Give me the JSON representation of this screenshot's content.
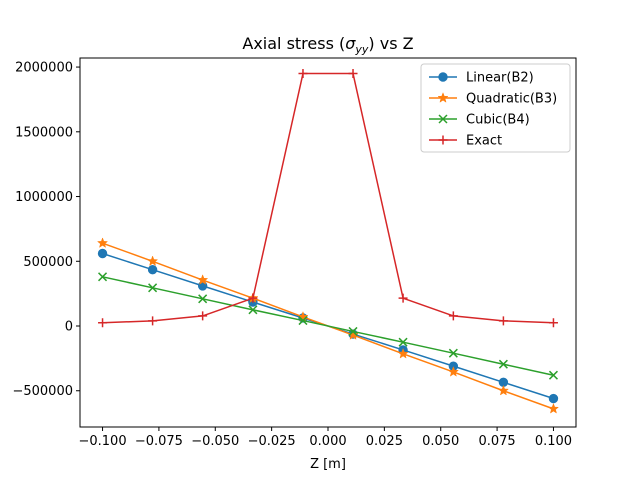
{
  "chart_data": {
    "type": "line",
    "title": {
      "prefix": "Axial stress (",
      "symbol": "σ",
      "subscript": "yy",
      "suffix": ") vs Z"
    },
    "xlabel": "Z [m]",
    "ylabel": "",
    "xlim": [
      -0.11,
      0.11
    ],
    "ylim": [
      -780000,
      2070000
    ],
    "x_ticks": [
      -0.1,
      -0.075,
      -0.05,
      -0.025,
      0.0,
      0.025,
      0.05,
      0.075,
      0.1
    ],
    "x_tick_labels": [
      "−0.100",
      "−0.075",
      "−0.050",
      "−0.025",
      "0.000",
      "0.025",
      "0.050",
      "0.075",
      "0.100"
    ],
    "y_ticks": [
      -500000,
      0,
      500000,
      1000000,
      1500000,
      2000000
    ],
    "y_tick_labels": [
      "−500000",
      "0",
      "500000",
      "1000000",
      "1500000",
      "2000000"
    ],
    "grid": false,
    "legend_position": "top-right",
    "series": [
      {
        "name": "Linear(B2)",
        "color": "#1f77b4",
        "marker": "circle",
        "x": [
          -0.1,
          -0.0778,
          -0.0556,
          -0.0333,
          -0.0111,
          0.0111,
          0.0333,
          0.0556,
          0.0778,
          0.1
        ],
        "y": [
          560000,
          435000,
          310000,
          185000,
          62000,
          -62000,
          -185000,
          -310000,
          -435000,
          -560000
        ]
      },
      {
        "name": "Quadratic(B3)",
        "color": "#ff7f0e",
        "marker": "star",
        "x": [
          -0.1,
          -0.0778,
          -0.0556,
          -0.0333,
          -0.0111,
          0.0111,
          0.0333,
          0.0556,
          0.0778,
          0.1
        ],
        "y": [
          640000,
          500000,
          355000,
          215000,
          70000,
          -70000,
          -215000,
          -355000,
          -500000,
          -640000
        ]
      },
      {
        "name": "Cubic(B4)",
        "color": "#2ca02c",
        "marker": "x",
        "x": [
          -0.1,
          -0.0778,
          -0.0556,
          -0.0333,
          -0.0111,
          0.0111,
          0.0333,
          0.0556,
          0.0778,
          0.1
        ],
        "y": [
          380000,
          295000,
          210000,
          125000,
          42000,
          -42000,
          -125000,
          -210000,
          -295000,
          -380000
        ]
      },
      {
        "name": "Exact",
        "color": "#d62728",
        "marker": "plus",
        "x": [
          -0.1,
          -0.0778,
          -0.0556,
          -0.0333,
          -0.0111,
          0.0111,
          0.0333,
          0.0556,
          0.0778,
          0.1
        ],
        "y": [
          25000,
          40000,
          78000,
          215000,
          1950000,
          1950000,
          215000,
          78000,
          40000,
          25000
        ]
      }
    ]
  }
}
